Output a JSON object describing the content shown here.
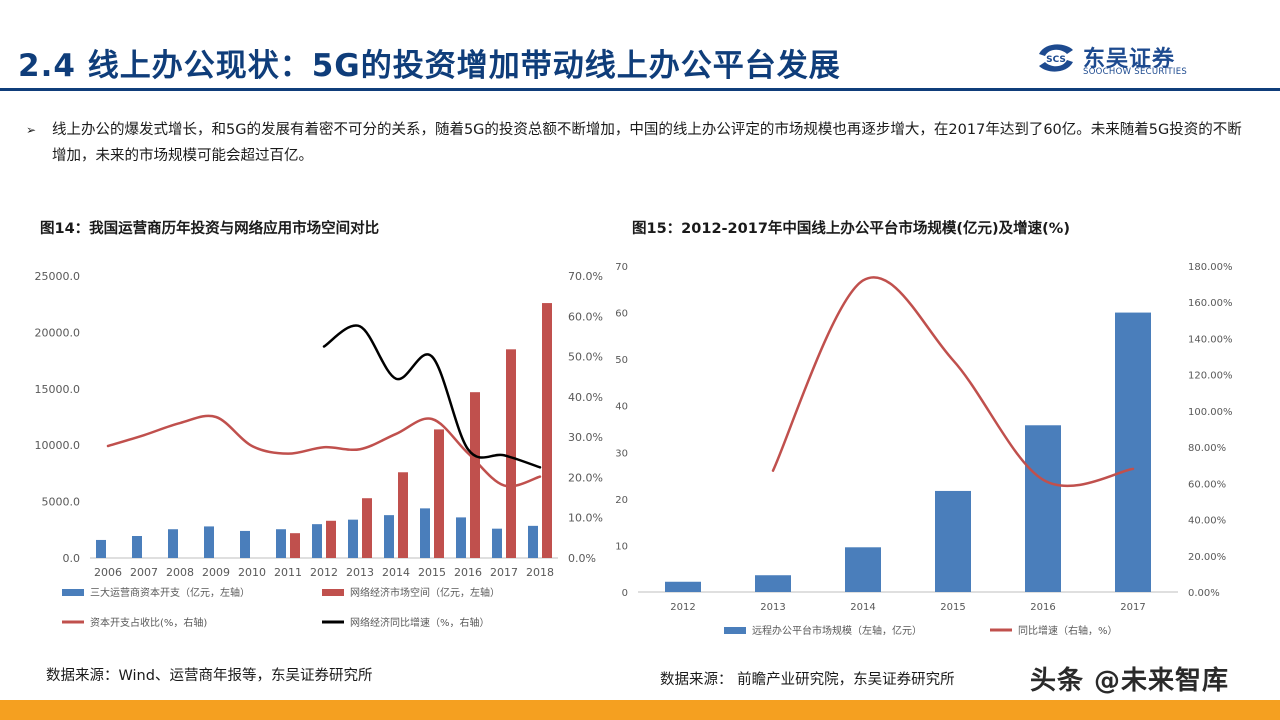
{
  "slide": {
    "title": "2.4 线上办公现状：5G的投资增加带动线上办公平台发展",
    "logo_cn": "东吴证券",
    "logo_en": "SOOCHOW SECURITIES",
    "logo_mark_text": "SCS",
    "bullet": "线上办公的爆发式增长，和5G的发展有着密不可分的关系，随着5G的投资总额不断增加，中国的线上办公评定的市场规模也再逐步增大，在2017年达到了60亿。未来随着5G投资的不断增加，未来的市场规模可能会超过百亿。",
    "source14": "数据来源：Wind、运营商年报等，东吴证券研究所",
    "source15": "数据来源： 前瞻产业研究院，东吴证券研究所",
    "watermark": "头条 @未来智库",
    "colors": {
      "title": "#0f3d7a",
      "blue_bar": "#4a7ebb",
      "red_bar": "#c0504d",
      "black_line": "#000000",
      "bottom_bar": "#f5a020"
    }
  },
  "chart_data": [
    {
      "type": "bar",
      "title": "图14：我国运营商历年投资与网络应用市场空间对比",
      "categories": [
        "2006",
        "2007",
        "2008",
        "2009",
        "2010",
        "2011",
        "2012",
        "2013",
        "2014",
        "2015",
        "2016",
        "2017",
        "2018"
      ],
      "y_left_ticks": [
        "0.0",
        "5000.0",
        "10000.0",
        "15000.0",
        "20000.0",
        "25000.0"
      ],
      "y_right_ticks": [
        "0.0%",
        "10.0%",
        "20.0%",
        "30.0%",
        "40.0%",
        "50.0%",
        "60.0%",
        "70.0%"
      ],
      "ylim_left": [
        0,
        25000
      ],
      "ylim_right": [
        0,
        70
      ],
      "series": [
        {
          "name": "三大运营商资本开支（亿元，左轴）",
          "kind": "bar",
          "axis": "left",
          "color": "#4a7ebb",
          "values": [
            1600,
            1950,
            2550,
            2800,
            2400,
            2550,
            3000,
            3400,
            3800,
            4400,
            3600,
            2600,
            2850
          ]
        },
        {
          "name": "网络经济市场空间（亿元，左轴）",
          "kind": "bar",
          "axis": "left",
          "color": "#c0504d",
          "values": [
            null,
            null,
            null,
            null,
            null,
            2200,
            3300,
            5300,
            7600,
            11400,
            14700,
            18500,
            22600
          ]
        },
        {
          "name": "资本开支占收比(%，右轴)",
          "kind": "line",
          "axis": "right",
          "color": "#c0504d",
          "values": [
            27.8,
            30.5,
            33.5,
            35,
            27.8,
            25.9,
            27.5,
            27,
            30.8,
            34.5,
            26,
            18,
            20.2
          ]
        },
        {
          "name": "网络经济同比增速（%，右轴）",
          "kind": "line",
          "axis": "right",
          "color": "#000000",
          "values": [
            null,
            null,
            null,
            null,
            null,
            null,
            52.5,
            57.5,
            44.5,
            50,
            27,
            25.5,
            22.5
          ]
        }
      ],
      "legend_position": "bottom",
      "grid": false
    },
    {
      "type": "bar",
      "title": "图15：2012-2017年中国线上办公平台市场规模(亿元)及增速(%)",
      "categories": [
        "2012",
        "2013",
        "2014",
        "2015",
        "2016",
        "2017"
      ],
      "y_left_ticks": [
        "0",
        "10",
        "20",
        "30",
        "40",
        "50",
        "60",
        "70"
      ],
      "y_right_ticks": [
        "0.00%",
        "20.00%",
        "40.00%",
        "60.00%",
        "80.00%",
        "100.00%",
        "120.00%",
        "140.00%",
        "160.00%",
        "180.00%"
      ],
      "ylim_left": [
        0,
        70
      ],
      "ylim_right": [
        0,
        180
      ],
      "series": [
        {
          "name": "远程办公平台市场规模（左轴，亿元）",
          "kind": "bar",
          "axis": "left",
          "color": "#4a7ebb",
          "values": [
            2.2,
            3.6,
            9.6,
            21.7,
            35.8,
            60
          ]
        },
        {
          "name": "同比增速（右轴，%）",
          "kind": "line",
          "axis": "right",
          "color": "#c0504d",
          "values": [
            null,
            67,
            172,
            128,
            62,
            68
          ]
        }
      ],
      "legend_position": "bottom",
      "grid": false
    }
  ]
}
